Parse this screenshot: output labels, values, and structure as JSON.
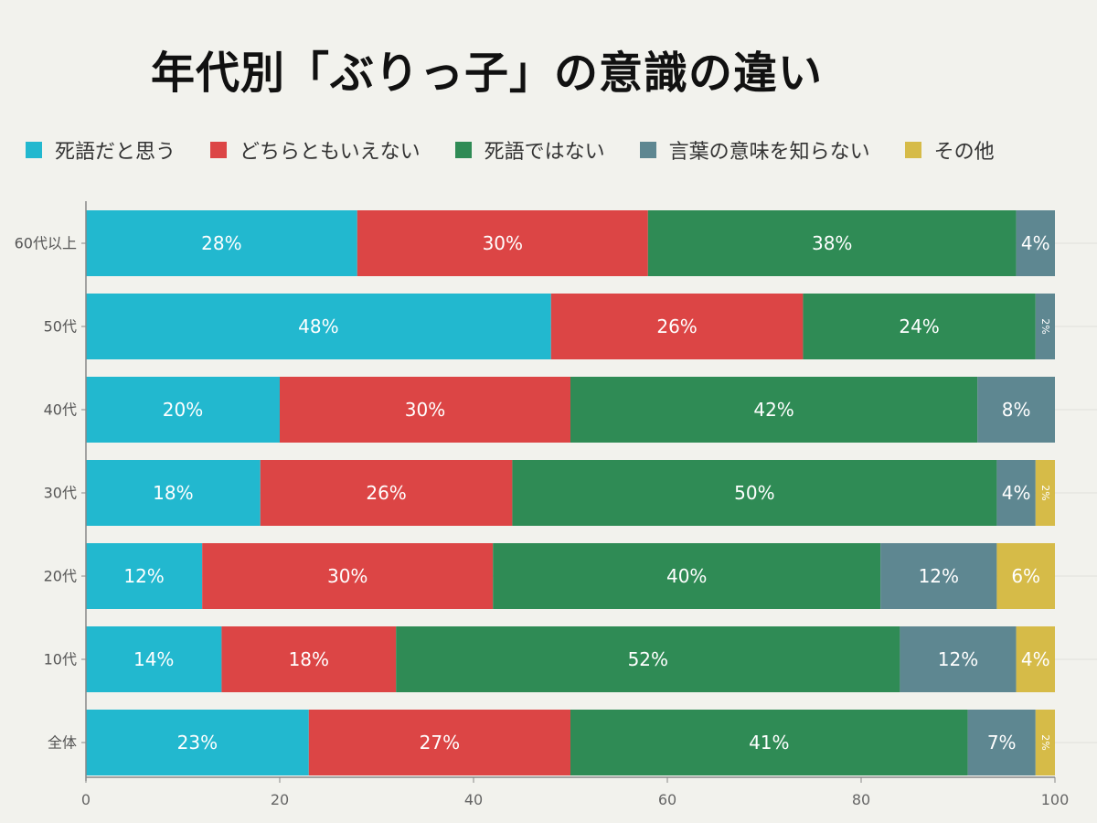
{
  "chart_data": {
    "type": "bar",
    "orientation": "horizontal",
    "stacked": true,
    "title": "年代別「ぶりっ子」の意識の違い",
    "categories": [
      "60代以上",
      "50代",
      "40代",
      "30代",
      "20代",
      "10代",
      "全体"
    ],
    "series": [
      {
        "name": "死語だと思う",
        "color": "#22b8cf",
        "values": [
          28,
          48,
          20,
          18,
          12,
          14,
          23
        ]
      },
      {
        "name": "どちらともいえない",
        "color": "#dc4545",
        "values": [
          30,
          26,
          30,
          26,
          30,
          18,
          27
        ]
      },
      {
        "name": "死語ではない",
        "color": "#2f8b55",
        "values": [
          38,
          24,
          42,
          50,
          40,
          52,
          41
        ]
      },
      {
        "name": "言葉の意味を知らない",
        "color": "#5e8791",
        "values": [
          4,
          2,
          8,
          4,
          12,
          12,
          7
        ]
      },
      {
        "name": "その他",
        "color": "#d6bb48",
        "values": [
          0,
          0,
          0,
          2,
          6,
          4,
          2
        ]
      }
    ],
    "xlim": [
      0,
      100
    ],
    "xticks": [
      0,
      20,
      40,
      60,
      80,
      100
    ],
    "value_format": "percent",
    "grid": true,
    "legend": "top"
  }
}
